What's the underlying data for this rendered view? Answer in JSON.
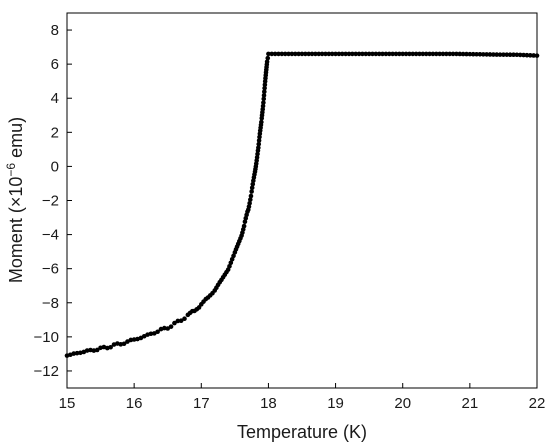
{
  "chart_data": {
    "type": "scatter",
    "title": "",
    "xlabel": "Temperature (K)",
    "ylabel_prefix": "Moment (×10",
    "ylabel_exp": "−6",
    "ylabel_suffix": " emu)",
    "xlim": [
      15,
      22
    ],
    "ylim": [
      -13,
      9
    ],
    "xticks": [
      15,
      16,
      17,
      18,
      19,
      20,
      21,
      22
    ],
    "xtick_labels": [
      "15",
      "16",
      "17",
      "18",
      "19",
      "20",
      "21",
      "22"
    ],
    "yticks": [
      8,
      6,
      4,
      2,
      0,
      -2,
      -4,
      -6,
      -8,
      -10,
      -12
    ],
    "ytick_labels": [
      "8",
      "6",
      "4",
      "2",
      "0",
      "−2",
      "−4",
      "−6",
      "−8",
      "−10",
      "−12"
    ],
    "grid": false,
    "marker_color": "#000000",
    "series": [
      {
        "points": [
          [
            15.0,
            -11.1
          ],
          [
            15.1,
            -11.0
          ],
          [
            15.2,
            -10.9
          ],
          [
            15.3,
            -10.85
          ],
          [
            15.4,
            -10.75
          ],
          [
            15.5,
            -10.7
          ],
          [
            15.6,
            -10.6
          ],
          [
            15.7,
            -10.5
          ],
          [
            15.8,
            -10.4
          ],
          [
            15.9,
            -10.3
          ],
          [
            16.0,
            -10.15
          ],
          [
            16.1,
            -10.05
          ],
          [
            16.2,
            -9.9
          ],
          [
            16.3,
            -9.75
          ],
          [
            16.4,
            -9.6
          ],
          [
            16.5,
            -9.45
          ],
          [
            16.6,
            -9.25
          ],
          [
            16.7,
            -9.0
          ],
          [
            16.8,
            -8.75
          ],
          [
            16.9,
            -8.45
          ],
          [
            17.0,
            -8.1
          ],
          [
            17.1,
            -7.7
          ],
          [
            17.2,
            -7.25
          ],
          [
            17.3,
            -6.7
          ],
          [
            17.4,
            -6.0
          ],
          [
            17.5,
            -5.1
          ],
          [
            17.6,
            -4.0
          ],
          [
            17.65,
            -3.3
          ],
          [
            17.7,
            -2.5
          ],
          [
            17.75,
            -1.5
          ],
          [
            17.8,
            -0.3
          ],
          [
            17.85,
            1.1
          ],
          [
            17.9,
            2.8
          ],
          [
            17.93,
            4.0
          ],
          [
            17.96,
            5.3
          ],
          [
            17.98,
            6.2
          ],
          [
            18.0,
            6.6
          ],
          [
            18.2,
            6.6
          ],
          [
            18.5,
            6.6
          ],
          [
            18.8,
            6.6
          ],
          [
            19.0,
            6.6
          ],
          [
            19.3,
            6.6
          ],
          [
            19.6,
            6.6
          ],
          [
            19.9,
            6.6
          ],
          [
            20.2,
            6.6
          ],
          [
            20.5,
            6.6
          ],
          [
            20.8,
            6.6
          ],
          [
            21.1,
            6.58
          ],
          [
            21.4,
            6.56
          ],
          [
            21.7,
            6.55
          ],
          [
            22.0,
            6.5
          ]
        ]
      }
    ]
  }
}
